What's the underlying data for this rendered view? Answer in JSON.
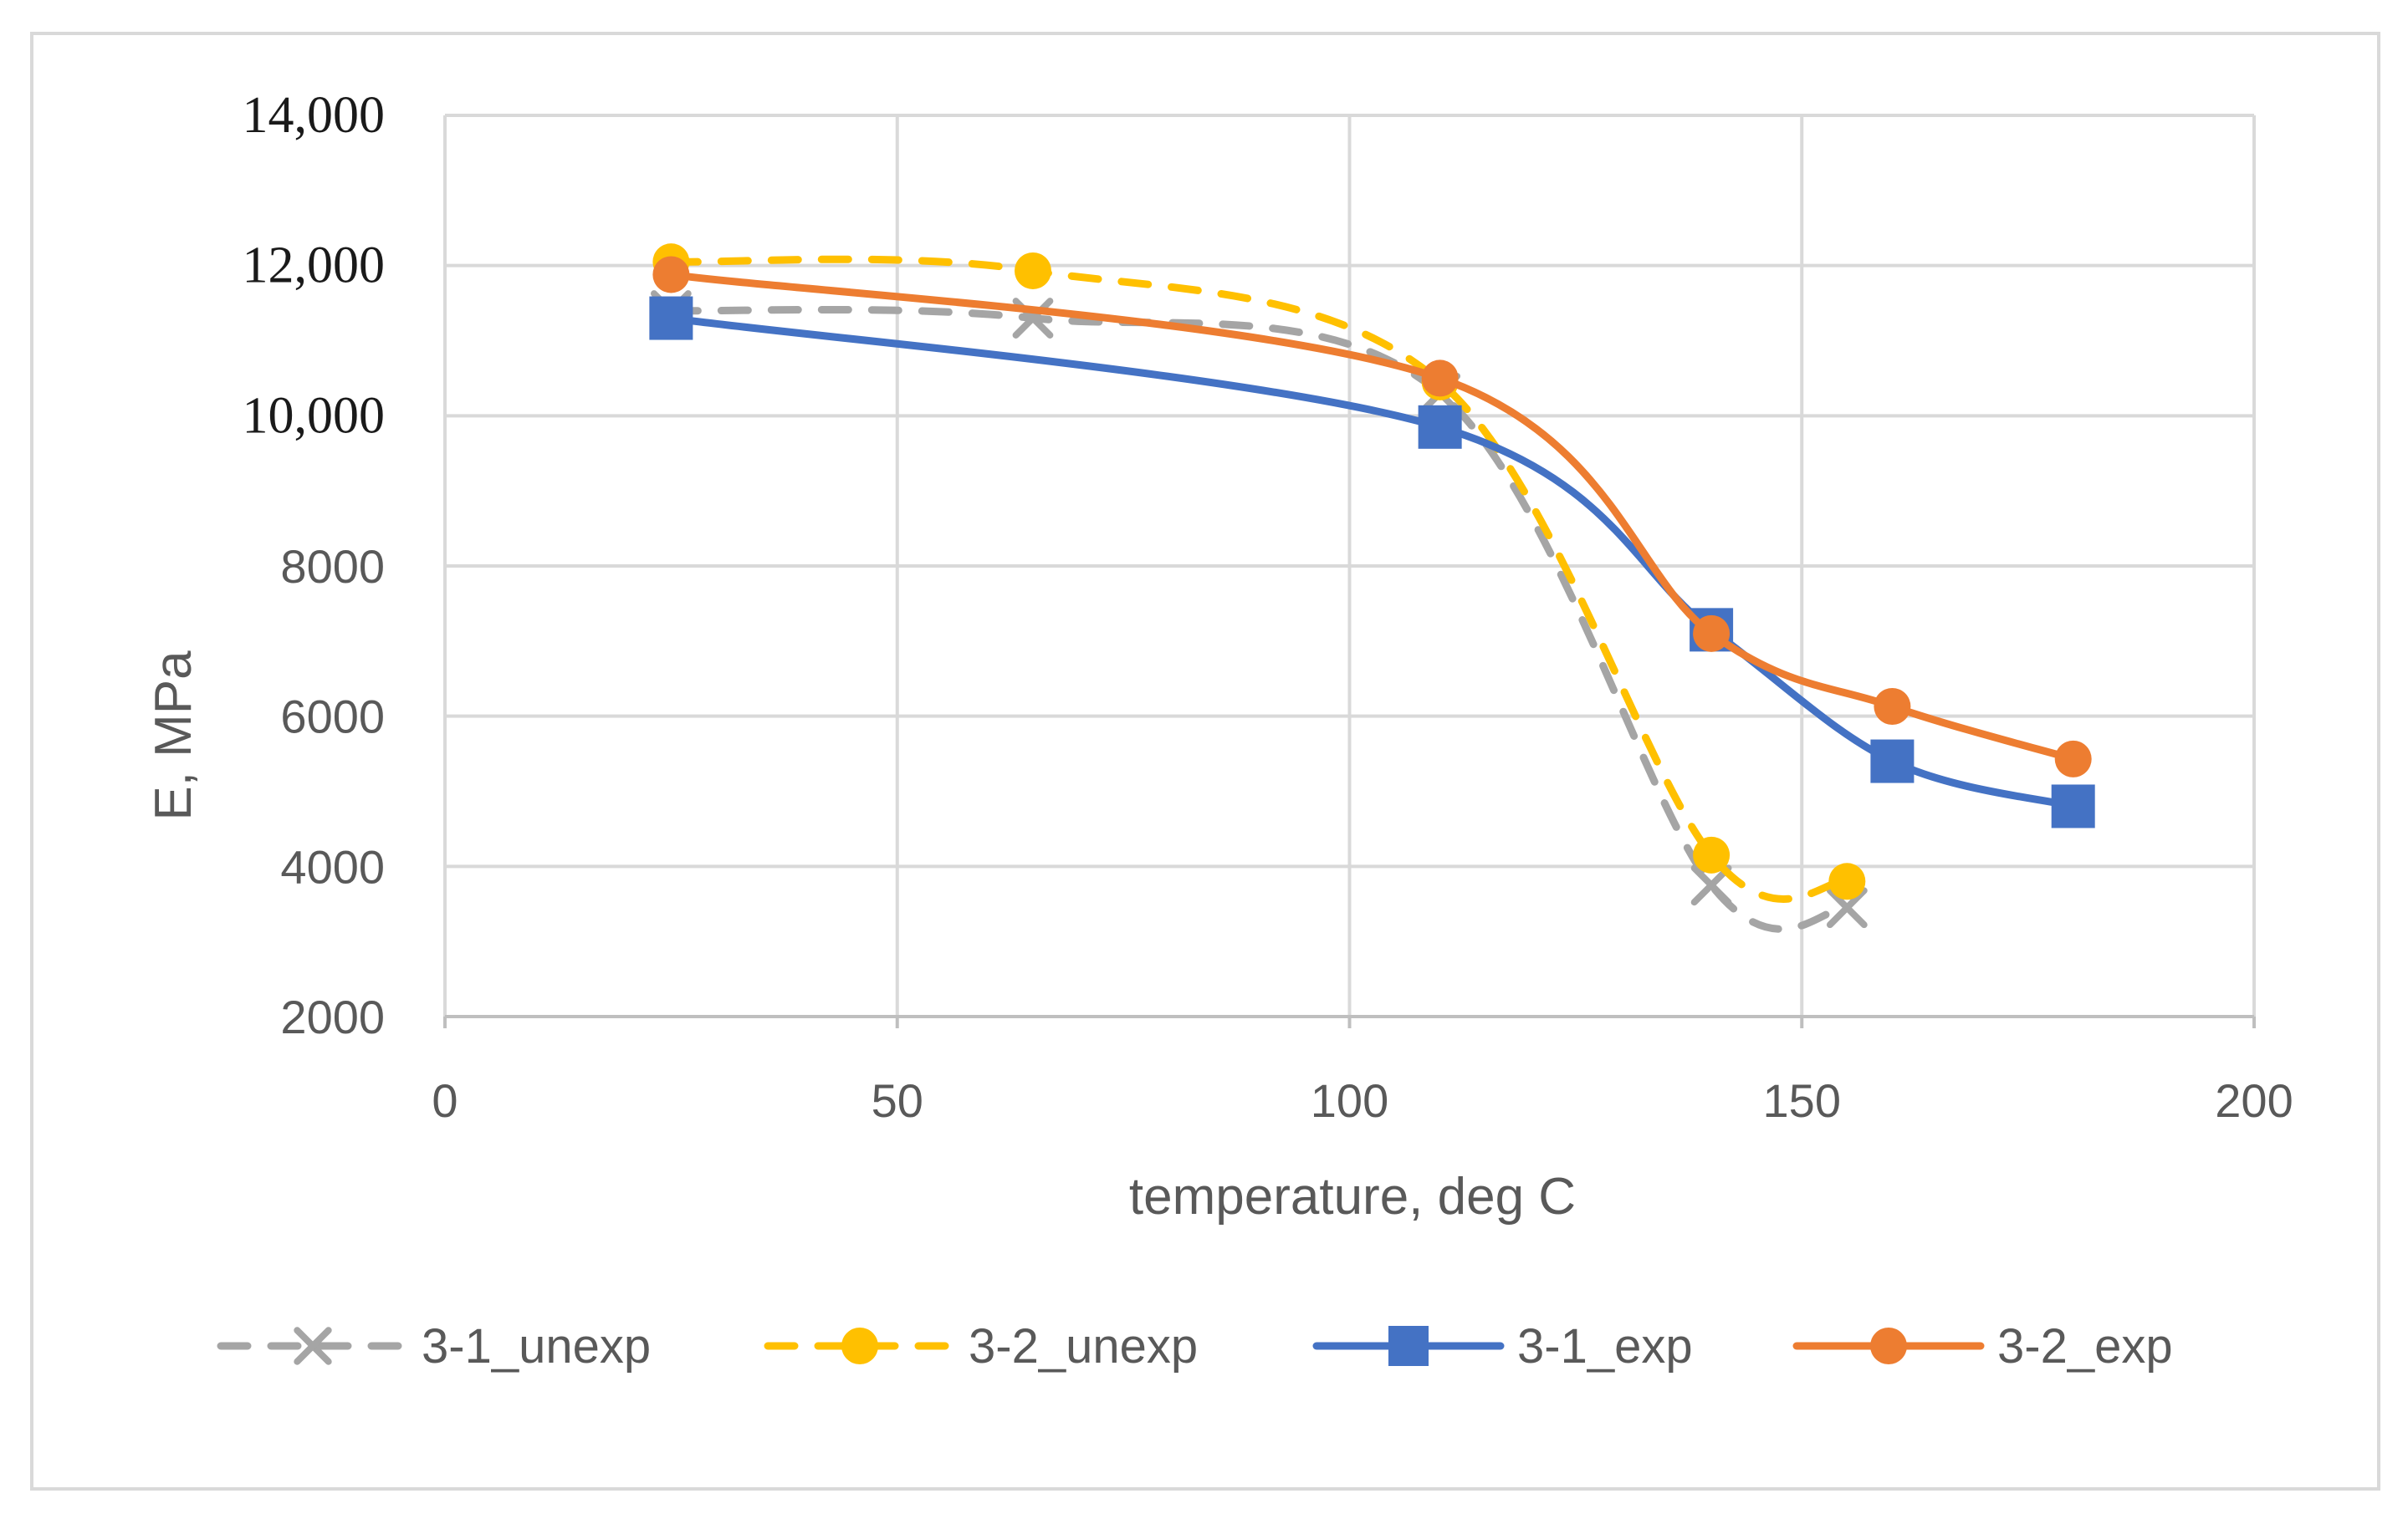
{
  "chart_data": {
    "type": "line",
    "title": "",
    "xlabel": "temperature, deg C",
    "ylabel": "E, MPa",
    "xlim": [
      0,
      200
    ],
    "ylim": [
      2000,
      14000
    ],
    "x_ticks": [
      0,
      50,
      100,
      150,
      200
    ],
    "x_tick_labels": [
      "0",
      "50",
      "100",
      "150",
      "200"
    ],
    "y_ticks": [
      2000,
      4000,
      6000,
      8000,
      10000,
      12000,
      14000
    ],
    "y_tick_labels": [
      "2000",
      "4000",
      "6000",
      "8000",
      "10,000",
      "12,000",
      "14,000"
    ],
    "grid": true,
    "legend_position": "bottom",
    "series": [
      {
        "name": "3-1_unexp",
        "color": "#a5a5a5",
        "line": "dashed",
        "marker": "x",
        "x": [
          25,
          65,
          110,
          140,
          155
        ],
        "y": [
          11400,
          11300,
          10300,
          3750,
          3450
        ]
      },
      {
        "name": "3-2_unexp",
        "color": "#ffc000",
        "line": "dashed",
        "marker": "circle",
        "x": [
          25,
          65,
          110,
          140,
          155
        ],
        "y": [
          12050,
          11930,
          10450,
          4150,
          3800
        ]
      },
      {
        "name": "3-1_exp",
        "color": "#4472c4",
        "line": "solid",
        "marker": "square",
        "x": [
          25,
          110,
          140,
          160,
          180
        ],
        "y": [
          11300,
          9850,
          7150,
          5400,
          4800
        ]
      },
      {
        "name": "3-2_exp",
        "color": "#ed7d31",
        "line": "solid",
        "marker": "circle",
        "x": [
          25,
          110,
          140,
          160,
          180
        ],
        "y": [
          11880,
          10500,
          7100,
          6130,
          5430
        ]
      }
    ]
  }
}
